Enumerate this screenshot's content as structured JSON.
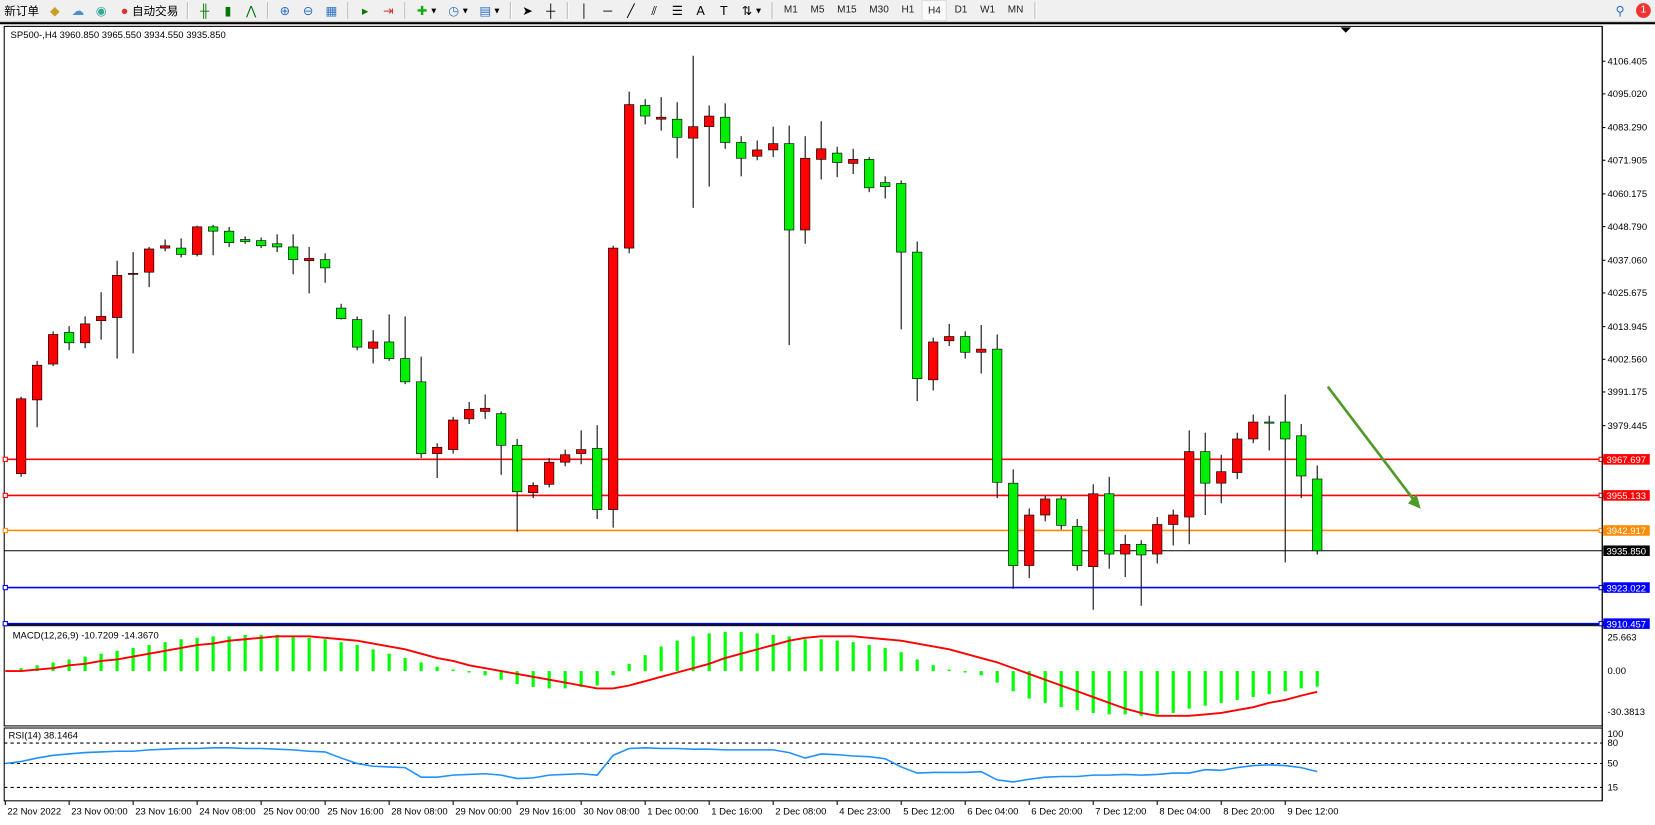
{
  "toolbar": {
    "new_order": "新订单",
    "auto_trading": "自动交易",
    "timeframes": [
      "M1",
      "M5",
      "M15",
      "M30",
      "H1",
      "H4",
      "D1",
      "W1",
      "MN"
    ],
    "active_timeframe": "H4",
    "notification_count": "1"
  },
  "chart": {
    "header": "SP500-,H4  3960.850 3965.550 3934.550 3935.850",
    "colors": {
      "bull": "#ff0000",
      "bear": "#00ee00",
      "macd_hist": "#00ff00",
      "macd_signal": "#ff0000",
      "rsi": "#1e90ff"
    }
  },
  "chart_data": {
    "type": "candlestick",
    "symbol": "SP500-",
    "timeframe": "H4",
    "price_axis_ticks": [
      "4106.405",
      "4095.020",
      "4083.290",
      "4071.905",
      "4060.175",
      "4048.790",
      "4037.060",
      "4025.675",
      "4013.945",
      "4002.560",
      "3991.175",
      "3979.445"
    ],
    "ylim": [
      3907.0,
      4113.0
    ],
    "time_labels": [
      "22 Nov 2022",
      "23 Nov 00:00",
      "23 Nov 16:00",
      "24 Nov 08:00",
      "25 Nov 00:00",
      "25 Nov 16:00",
      "28 Nov 08:00",
      "29 Nov 00:00",
      "29 Nov 16:00",
      "30 Nov 08:00",
      "1 Dec 00:00",
      "1 Dec 16:00",
      "2 Dec 08:00",
      "4 Dec 23:00",
      "5 Dec 12:00",
      "6 Dec 04:00",
      "6 Dec 20:00",
      "7 Dec 12:00",
      "8 Dec 04:00",
      "8 Dec 20:00",
      "9 Dec 12:00"
    ],
    "ohlc": [
      [
        3962.7,
        3989.5,
        3961.6,
        3988.8
      ],
      [
        3988.4,
        4002.0,
        3978.9,
        4000.5
      ],
      [
        4000.9,
        4012.3,
        4000.2,
        4011.2
      ],
      [
        4011.9,
        4014.1,
        4005.7,
        4008.3
      ],
      [
        4008.3,
        4017.5,
        4006.4,
        4014.9
      ],
      [
        4016.0,
        4025.9,
        4009.4,
        4017.5
      ],
      [
        4017.1,
        4036.9,
        4002.8,
        4031.8
      ],
      [
        4032.2,
        4039.9,
        4004.6,
        4032.5
      ],
      [
        4032.9,
        4041.7,
        4027.7,
        4041.0
      ],
      [
        4041.3,
        4044.3,
        4040.2,
        4042.1
      ],
      [
        4041.3,
        4044.7,
        4038.0,
        4039.1
      ],
      [
        4039.1,
        4049.1,
        4038.4,
        4048.7
      ],
      [
        4048.7,
        4049.4,
        4038.8,
        4047.2
      ],
      [
        4047.2,
        4048.7,
        4041.7,
        4043.2
      ],
      [
        4044.3,
        4045.4,
        4042.8,
        4043.6
      ],
      [
        4043.9,
        4045.0,
        4041.3,
        4042.1
      ],
      [
        4042.8,
        4046.1,
        4039.9,
        4041.7
      ],
      [
        4041.7,
        4046.1,
        4032.2,
        4037.3
      ],
      [
        4036.9,
        4041.7,
        4025.5,
        4037.7
      ],
      [
        4037.3,
        4039.5,
        4029.2,
        4034.4
      ],
      [
        4020.4,
        4021.9,
        4016.4,
        4016.7
      ],
      [
        4016.4,
        4017.5,
        4005.7,
        4006.8
      ],
      [
        4006.4,
        4012.7,
        4001.1,
        4008.6
      ],
      [
        4008.6,
        4018.2,
        4002.0,
        4002.8
      ],
      [
        4002.8,
        4017.5,
        3993.9,
        3994.7
      ],
      [
        3994.7,
        4003.5,
        3968.2,
        3969.7
      ],
      [
        3969.7,
        3973.3,
        3961.2,
        3971.9
      ],
      [
        3971.1,
        3982.5,
        3969.7,
        3981.4
      ],
      [
        3981.8,
        3987.7,
        3980.0,
        3985.1
      ],
      [
        3984.4,
        3990.3,
        3981.8,
        3985.5
      ],
      [
        3983.6,
        3984.4,
        3962.3,
        3972.6
      ],
      [
        3972.6,
        3974.8,
        3942.5,
        3956.4
      ],
      [
        3956.1,
        3959.7,
        3954.2,
        3958.6
      ],
      [
        3959.0,
        3968.2,
        3957.9,
        3966.7
      ],
      [
        3966.7,
        3971.1,
        3965.3,
        3969.3
      ],
      [
        3969.7,
        3977.8,
        3966.0,
        3971.1
      ],
      [
        3971.5,
        3979.6,
        3946.9,
        3950.2
      ],
      [
        3950.2,
        4042.1,
        3943.9,
        4041.3
      ],
      [
        4041.3,
        4095.8,
        4039.5,
        4091.3
      ],
      [
        4091.0,
        4093.2,
        4084.4,
        4087.3
      ],
      [
        4086.2,
        4093.9,
        4082.2,
        4086.9
      ],
      [
        4086.2,
        4092.1,
        4072.6,
        4079.9
      ],
      [
        4079.6,
        4108.3,
        4055.3,
        4083.6
      ],
      [
        4083.6,
        4091.0,
        4062.7,
        4087.3
      ],
      [
        4086.9,
        4091.7,
        4075.9,
        4078.1
      ],
      [
        4078.1,
        4080.3,
        4066.3,
        4072.6
      ],
      [
        4073.3,
        4078.8,
        4071.9,
        4075.5
      ],
      [
        4075.5,
        4083.6,
        4073.0,
        4077.7
      ],
      [
        4077.7,
        4084.0,
        4007.5,
        4047.6
      ],
      [
        4047.6,
        4080.3,
        4042.8,
        4072.6
      ],
      [
        4072.2,
        4085.5,
        4065.2,
        4075.9
      ],
      [
        4074.4,
        4076.6,
        4066.0,
        4071.1
      ],
      [
        4070.8,
        4075.9,
        4067.1,
        4072.2
      ],
      [
        4072.2,
        4073.0,
        4060.8,
        4062.3
      ],
      [
        4064.1,
        4066.3,
        4058.6,
        4062.7
      ],
      [
        4063.8,
        4064.9,
        4013.0,
        4039.9
      ],
      [
        4039.9,
        4043.6,
        3988.0,
        3995.8
      ],
      [
        3995.4,
        4010.1,
        3991.7,
        4008.6
      ],
      [
        4009.0,
        4014.9,
        4007.2,
        4010.5
      ],
      [
        4010.5,
        4012.3,
        4002.8,
        4005.0
      ],
      [
        4005.0,
        4014.5,
        3997.6,
        4006.1
      ],
      [
        4006.1,
        4011.2,
        3954.2,
        3959.7
      ],
      [
        3959.4,
        3964.2,
        3922.6,
        3930.7
      ],
      [
        3930.7,
        3950.6,
        3926.3,
        3948.3
      ],
      [
        3948.3,
        3955.0,
        3946.1,
        3953.9
      ],
      [
        3953.9,
        3955.0,
        3943.2,
        3944.7
      ],
      [
        3944.3,
        3946.9,
        3928.9,
        3930.7
      ],
      [
        3930.3,
        3959.0,
        3915.3,
        3955.7
      ],
      [
        3955.7,
        3961.6,
        3929.6,
        3934.7
      ],
      [
        3934.7,
        3941.4,
        3926.7,
        3938.1
      ],
      [
        3938.1,
        3939.5,
        3916.7,
        3934.4
      ],
      [
        3934.7,
        3947.6,
        3931.4,
        3945.0
      ],
      [
        3945.0,
        3950.2,
        3937.7,
        3948.3
      ],
      [
        3947.6,
        3977.8,
        3938.1,
        3970.4
      ],
      [
        3970.4,
        3977.0,
        3948.3,
        3959.4
      ],
      [
        3959.4,
        3969.3,
        3952.4,
        3963.4
      ],
      [
        3963.1,
        3977.0,
        3960.8,
        3974.8
      ],
      [
        3974.8,
        3983.3,
        3973.3,
        3980.7
      ],
      [
        3980.7,
        3982.9,
        3970.8,
        3980.3
      ],
      [
        3980.7,
        3990.3,
        3931.8,
        3974.8
      ],
      [
        3975.9,
        3980.0,
        3954.2,
        3961.9
      ],
      [
        3960.85,
        3965.55,
        3934.55,
        3935.85
      ]
    ],
    "horizontal_lines": [
      {
        "price": "3967.697",
        "color": "#ff0000"
      },
      {
        "price": "3955.133",
        "color": "#ff0000"
      },
      {
        "price": "3942.917",
        "color": "#ff8c00"
      },
      {
        "price": "3935.850",
        "color": "#000000"
      },
      {
        "price": "3923.022",
        "color": "#0000ff"
      },
      {
        "price": "3910.457",
        "color": "#0000ff"
      }
    ],
    "trend_arrow": {
      "color": "#4f9a2a",
      "direction": "down",
      "from_price": 3993.0,
      "to_price": 3950.5
    },
    "macd": {
      "label": "MACD(12,26,9) -10.7209 -14.3670",
      "ticks": [
        "25.663",
        "0.00",
        "-30.3813"
      ],
      "histogram": [
        2,
        4,
        6,
        8,
        10,
        12,
        14,
        16,
        18,
        20,
        22,
        23,
        24,
        24,
        25,
        25,
        25,
        24,
        23,
        22,
        20,
        18,
        15,
        12,
        9,
        6,
        3,
        1,
        -1,
        -3,
        -6,
        -9,
        -11,
        -12,
        -12,
        -11,
        -10,
        -3,
        5,
        11,
        17,
        21,
        24,
        26,
        27,
        27,
        26,
        25,
        24,
        22,
        22,
        21,
        20,
        18,
        16,
        13,
        8,
        4,
        1,
        -1,
        -3,
        -8,
        -14,
        -19,
        -22,
        -25,
        -27,
        -29,
        -30,
        -30,
        -31,
        -30,
        -29,
        -26,
        -24,
        -22,
        -20,
        -18,
        -16,
        -14,
        -12,
        -10.7209
      ],
      "signal": [
        0,
        1,
        2,
        4,
        5,
        7,
        8,
        10,
        12,
        14,
        16,
        18,
        19,
        21,
        22,
        23,
        24,
        24,
        24,
        23,
        22,
        21,
        19,
        17,
        15,
        12,
        9,
        7,
        4,
        2,
        0,
        -2,
        -4,
        -6,
        -8,
        -10,
        -12,
        -12,
        -10,
        -7,
        -4,
        -1,
        2,
        5,
        9,
        12,
        15,
        18,
        21,
        23,
        24,
        24,
        24,
        23,
        22,
        21,
        19,
        17,
        15,
        12,
        9,
        6,
        2,
        -2,
        -6,
        -10,
        -14,
        -18,
        -22,
        -26,
        -29,
        -31,
        -31,
        -31,
        -30,
        -29,
        -27,
        -25,
        -22,
        -20,
        -17,
        -14.367
      ]
    },
    "rsi": {
      "label": "RSI(14) 38.1464",
      "ticks": [
        "100",
        "80",
        "50",
        "15"
      ],
      "levels": [
        80,
        50,
        15
      ],
      "values": [
        53,
        58,
        62,
        64,
        66,
        67,
        68,
        68,
        70,
        71,
        72,
        72,
        73,
        73,
        72,
        72,
        71,
        70,
        68,
        67,
        58,
        50,
        46,
        45,
        44,
        30,
        30,
        33,
        34,
        35,
        33,
        28,
        29,
        33,
        34,
        35,
        33,
        62,
        72,
        73,
        72,
        72,
        71,
        71,
        70,
        70,
        70,
        70,
        66,
        58,
        64,
        63,
        61,
        60,
        57,
        45,
        36,
        37,
        37,
        37,
        38,
        26,
        23,
        27,
        30,
        31,
        31,
        33,
        33,
        34,
        33,
        34,
        36,
        36,
        41,
        40,
        44,
        47,
        48,
        47,
        44,
        38.1464
      ]
    }
  }
}
